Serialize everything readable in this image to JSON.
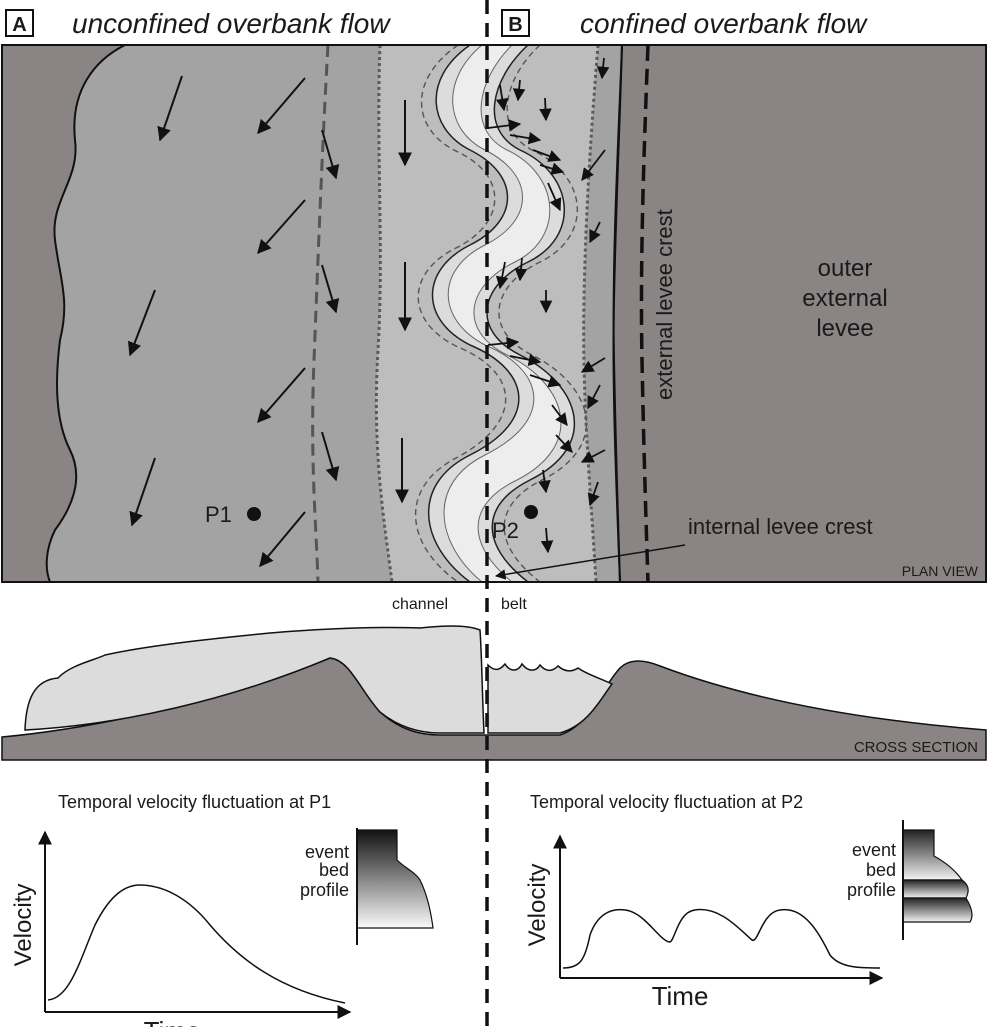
{
  "panel_a": {
    "letter": "A",
    "title": "unconfined overbank flow"
  },
  "panel_b": {
    "letter": "B",
    "title": "confined overbank flow"
  },
  "plan_view": {
    "caption": "PLAN VIEW",
    "point_p1": "P1",
    "point_p2": "P2",
    "external_levee_crest": "external levee crest",
    "outer_external_levee": [
      "outer",
      "external",
      "levee"
    ],
    "internal_levee_crest": "internal levee crest"
  },
  "channel_belt": {
    "left": "channel",
    "right": "belt"
  },
  "cross_section": {
    "caption": "CROSS SECTION"
  },
  "graph_p1": {
    "title": "Temporal velocity fluctuation at P1",
    "ylabel": "Velocity",
    "xlabel": "Time",
    "profile_label": [
      "event",
      "bed",
      "profile"
    ]
  },
  "graph_p2": {
    "title": "Temporal velocity fluctuation at P2",
    "ylabel": "Velocity",
    "xlabel": "Time",
    "profile_label": [
      "event",
      "bed",
      "profile"
    ]
  },
  "colors": {
    "outer_grey": "#8a8584",
    "overbank_grey": "#a3a3a3",
    "levee_grey": "#bdbdbd",
    "channel_light": "#dcdcdc",
    "channel_core": "#ececec"
  }
}
